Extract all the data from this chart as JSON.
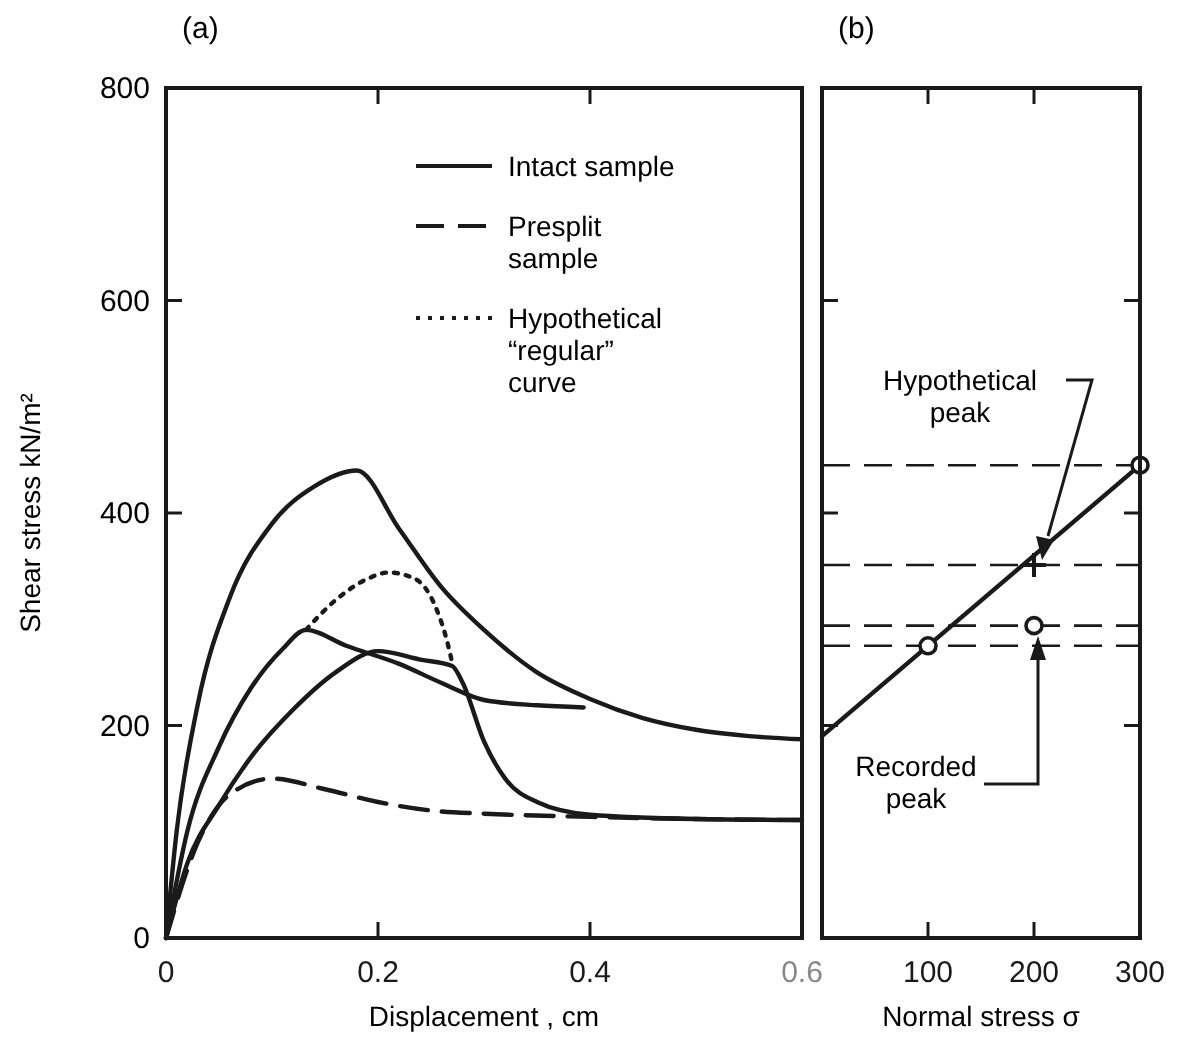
{
  "chart_data": [
    {
      "type": "line",
      "title": "(a)",
      "xlabel": "Displacement , cm",
      "ylabel": "Shear stress kN/m²",
      "xlim": [
        0,
        0.6
      ],
      "ylim": [
        0,
        800
      ],
      "xticks": [
        0,
        0.2,
        0.4,
        0.6
      ],
      "yticks": [
        0,
        200,
        400,
        600,
        800
      ],
      "legend": "top right",
      "series": [
        {
          "name": "Intact sample",
          "color": "#1a1a1a",
          "line_style": "solid",
          "x": [
            0,
            0.01,
            0.03,
            0.06,
            0.1,
            0.14,
            0.18,
            0.22,
            0.26,
            0.3,
            0.35,
            0.4,
            0.45,
            0.5,
            0.55,
            0.6
          ],
          "values": [
            0,
            100,
            220,
            320,
            390,
            425,
            440,
            385,
            330,
            290,
            250,
            225,
            207,
            196,
            190,
            187
          ]
        },
        {
          "name": "Presplit sample",
          "color": "#1a1a1a",
          "line_style": "dashed",
          "x": [
            0,
            0.03,
            0.06,
            0.1,
            0.15,
            0.2,
            0.25,
            0.3,
            0.4,
            0.5,
            0.6
          ],
          "values": [
            0,
            90,
            135,
            150,
            140,
            128,
            120,
            117,
            114,
            112,
            111
          ]
        },
        {
          "name": "Hypothetical “regular” curve",
          "color": "#1a1a1a",
          "line_style": "dotted",
          "x": [
            0.132,
            0.16,
            0.19,
            0.21,
            0.235,
            0.255,
            0.265,
            0.27
          ],
          "values": [
            290,
            318,
            338,
            344,
            338,
            310,
            280,
            259
          ]
        },
        {
          "color": "#1a1a1a",
          "line_style": "solid",
          "x": [
            0,
            0.02,
            0.05,
            0.08,
            0.11,
            0.132,
            0.17,
            0.22,
            0.26,
            0.3,
            0.35,
            0.394
          ],
          "values": [
            0,
            100,
            180,
            235,
            272,
            290,
            275,
            258,
            240,
            224,
            219,
            217
          ]
        },
        {
          "color": "#1a1a1a",
          "line_style": "solid",
          "x": [
            0,
            0.02,
            0.05,
            0.08,
            0.12,
            0.16,
            0.2,
            0.24,
            0.27,
            0.28,
            0.3,
            0.32,
            0.35,
            0.4,
            0.5,
            0.6
          ],
          "values": [
            0,
            70,
            125,
            170,
            215,
            250,
            270,
            262,
            256,
            240,
            185,
            150,
            128,
            116,
            112,
            111
          ]
        }
      ]
    },
    {
      "type": "line",
      "title": "(b)",
      "xlabel": "Normal stress σ",
      "xlim": [
        0,
        300
      ],
      "ylim": [
        0,
        800
      ],
      "xticks": [
        {
          "value": 0,
          "label": null
        },
        100,
        200,
        300
      ],
      "yticks": [
        0,
        200,
        400,
        600,
        800
      ],
      "tick_labels": "x",
      "ref_lines": [
        {
          "axis": "y",
          "value": 445,
          "line_style": "dashed"
        },
        {
          "axis": "y",
          "value": 351,
          "line_style": "dashed"
        },
        {
          "axis": "y",
          "value": 294,
          "line_style": "dashed"
        },
        {
          "axis": "y",
          "value": 275,
          "line_style": "dashed"
        }
      ],
      "annotations": [
        "Hypothetical peak",
        "Recorded peak"
      ],
      "series": [
        {
          "color": "#1a1a1a",
          "line_style": "solid",
          "x": [
            0,
            300
          ],
          "values": [
            190,
            445
          ]
        },
        {
          "type": "scatter",
          "color": "#1a1a1a",
          "marker": "circle",
          "x": [
            100,
            200,
            300
          ],
          "values": [
            275,
            294,
            445
          ]
        },
        {
          "type": "scatter",
          "color": "#1a1a1a",
          "marker": "cross",
          "x": [
            200
          ],
          "values": [
            351
          ]
        }
      ]
    }
  ]
}
